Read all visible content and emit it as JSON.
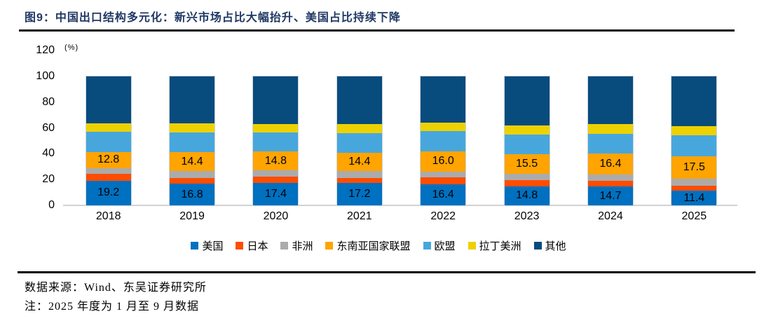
{
  "header": {
    "title": "图9：中国出口结构多元化：新兴市场占比大幅抬升、美国占比持续下降"
  },
  "chart_data": {
    "type": "bar",
    "stacked": true,
    "unit_label": "(%)",
    "categories": [
      "2018",
      "2019",
      "2020",
      "2021",
      "2022",
      "2023",
      "2024",
      "2025"
    ],
    "series": [
      {
        "name": "美国",
        "color": "#0070C0",
        "values": [
          19.2,
          16.8,
          17.4,
          17.2,
          16.4,
          14.8,
          14.7,
          11.4
        ]
      },
      {
        "name": "日本",
        "color": "#FF4D00",
        "values": [
          5.4,
          4.7,
          4.9,
          4.2,
          5.1,
          4.6,
          4.4,
          3.8
        ]
      },
      {
        "name": "非洲",
        "color": "#ABABAB",
        "values": [
          4.2,
          5.2,
          4.7,
          5.2,
          4.5,
          4.9,
          4.9,
          5.6
        ]
      },
      {
        "name": "东南亚国家联盟",
        "color": "#FFA400",
        "values": [
          12.8,
          14.4,
          14.8,
          14.4,
          16.0,
          15.5,
          16.4,
          17.5
        ]
      },
      {
        "name": "欧盟",
        "color": "#47A7DD",
        "values": [
          15.4,
          15.7,
          14.9,
          15.2,
          15.4,
          15.0,
          14.9,
          16.2
        ]
      },
      {
        "name": "拉丁美洲",
        "color": "#EDD100",
        "values": [
          6.6,
          6.9,
          6.3,
          6.7,
          7.0,
          7.4,
          7.6,
          7.0
        ]
      },
      {
        "name": "其他",
        "color": "#084B7D",
        "values": [
          36.4,
          36.3,
          37.0,
          37.1,
          35.6,
          37.8,
          37.1,
          38.5
        ]
      }
    ],
    "value_labeled_series": [
      "美国",
      "东南亚国家联盟"
    ],
    "y_ticks": [
      0,
      20,
      40,
      60,
      80,
      100,
      120
    ],
    "ylim": [
      0,
      120
    ],
    "grid": false,
    "legend_position": "bottom"
  },
  "footer": {
    "source": "数据来源：Wind、东吴证券研究所",
    "note": "注：2025 年度为 1 月至 9 月数据"
  }
}
